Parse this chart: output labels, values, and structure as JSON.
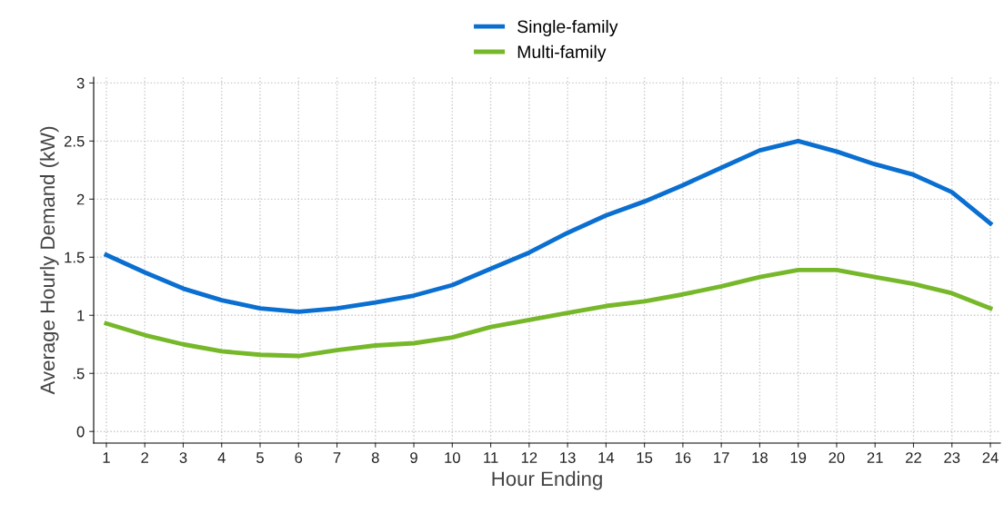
{
  "chart_data": {
    "type": "line",
    "xlabel": "Hour Ending",
    "ylabel": "Average Hourly Demand (kW)",
    "x": [
      1,
      2,
      3,
      4,
      5,
      6,
      7,
      8,
      9,
      10,
      11,
      12,
      13,
      14,
      15,
      16,
      17,
      18,
      19,
      20,
      21,
      22,
      23,
      24
    ],
    "series": [
      {
        "name": "Single-family",
        "color": "#0a6fd0",
        "values": [
          1.52,
          1.37,
          1.23,
          1.13,
          1.06,
          1.03,
          1.06,
          1.11,
          1.17,
          1.26,
          1.4,
          1.54,
          1.71,
          1.86,
          1.98,
          2.12,
          2.27,
          2.42,
          2.5,
          2.41,
          2.3,
          2.21,
          2.06,
          1.79
        ]
      },
      {
        "name": "Multi-family",
        "color": "#76b82a",
        "values": [
          0.93,
          0.83,
          0.75,
          0.69,
          0.66,
          0.65,
          0.7,
          0.74,
          0.76,
          0.81,
          0.9,
          0.96,
          1.02,
          1.08,
          1.12,
          1.18,
          1.25,
          1.33,
          1.39,
          1.39,
          1.33,
          1.27,
          1.19,
          1.06
        ]
      }
    ],
    "xlim": [
      0.67,
      24.26
    ],
    "xticks": [
      1,
      2,
      3,
      4,
      5,
      6,
      7,
      8,
      9,
      10,
      11,
      12,
      13,
      14,
      15,
      16,
      17,
      18,
      19,
      20,
      21,
      22,
      23,
      24
    ],
    "ylim": [
      -0.1,
      3.05
    ],
    "yticks": [
      0,
      {
        "value": 0.5,
        "label": ".5"
      },
      1,
      1.5,
      2,
      2.5,
      3
    ],
    "grid": true,
    "legend": "top",
    "marker": "none",
    "line_style": "solid"
  }
}
